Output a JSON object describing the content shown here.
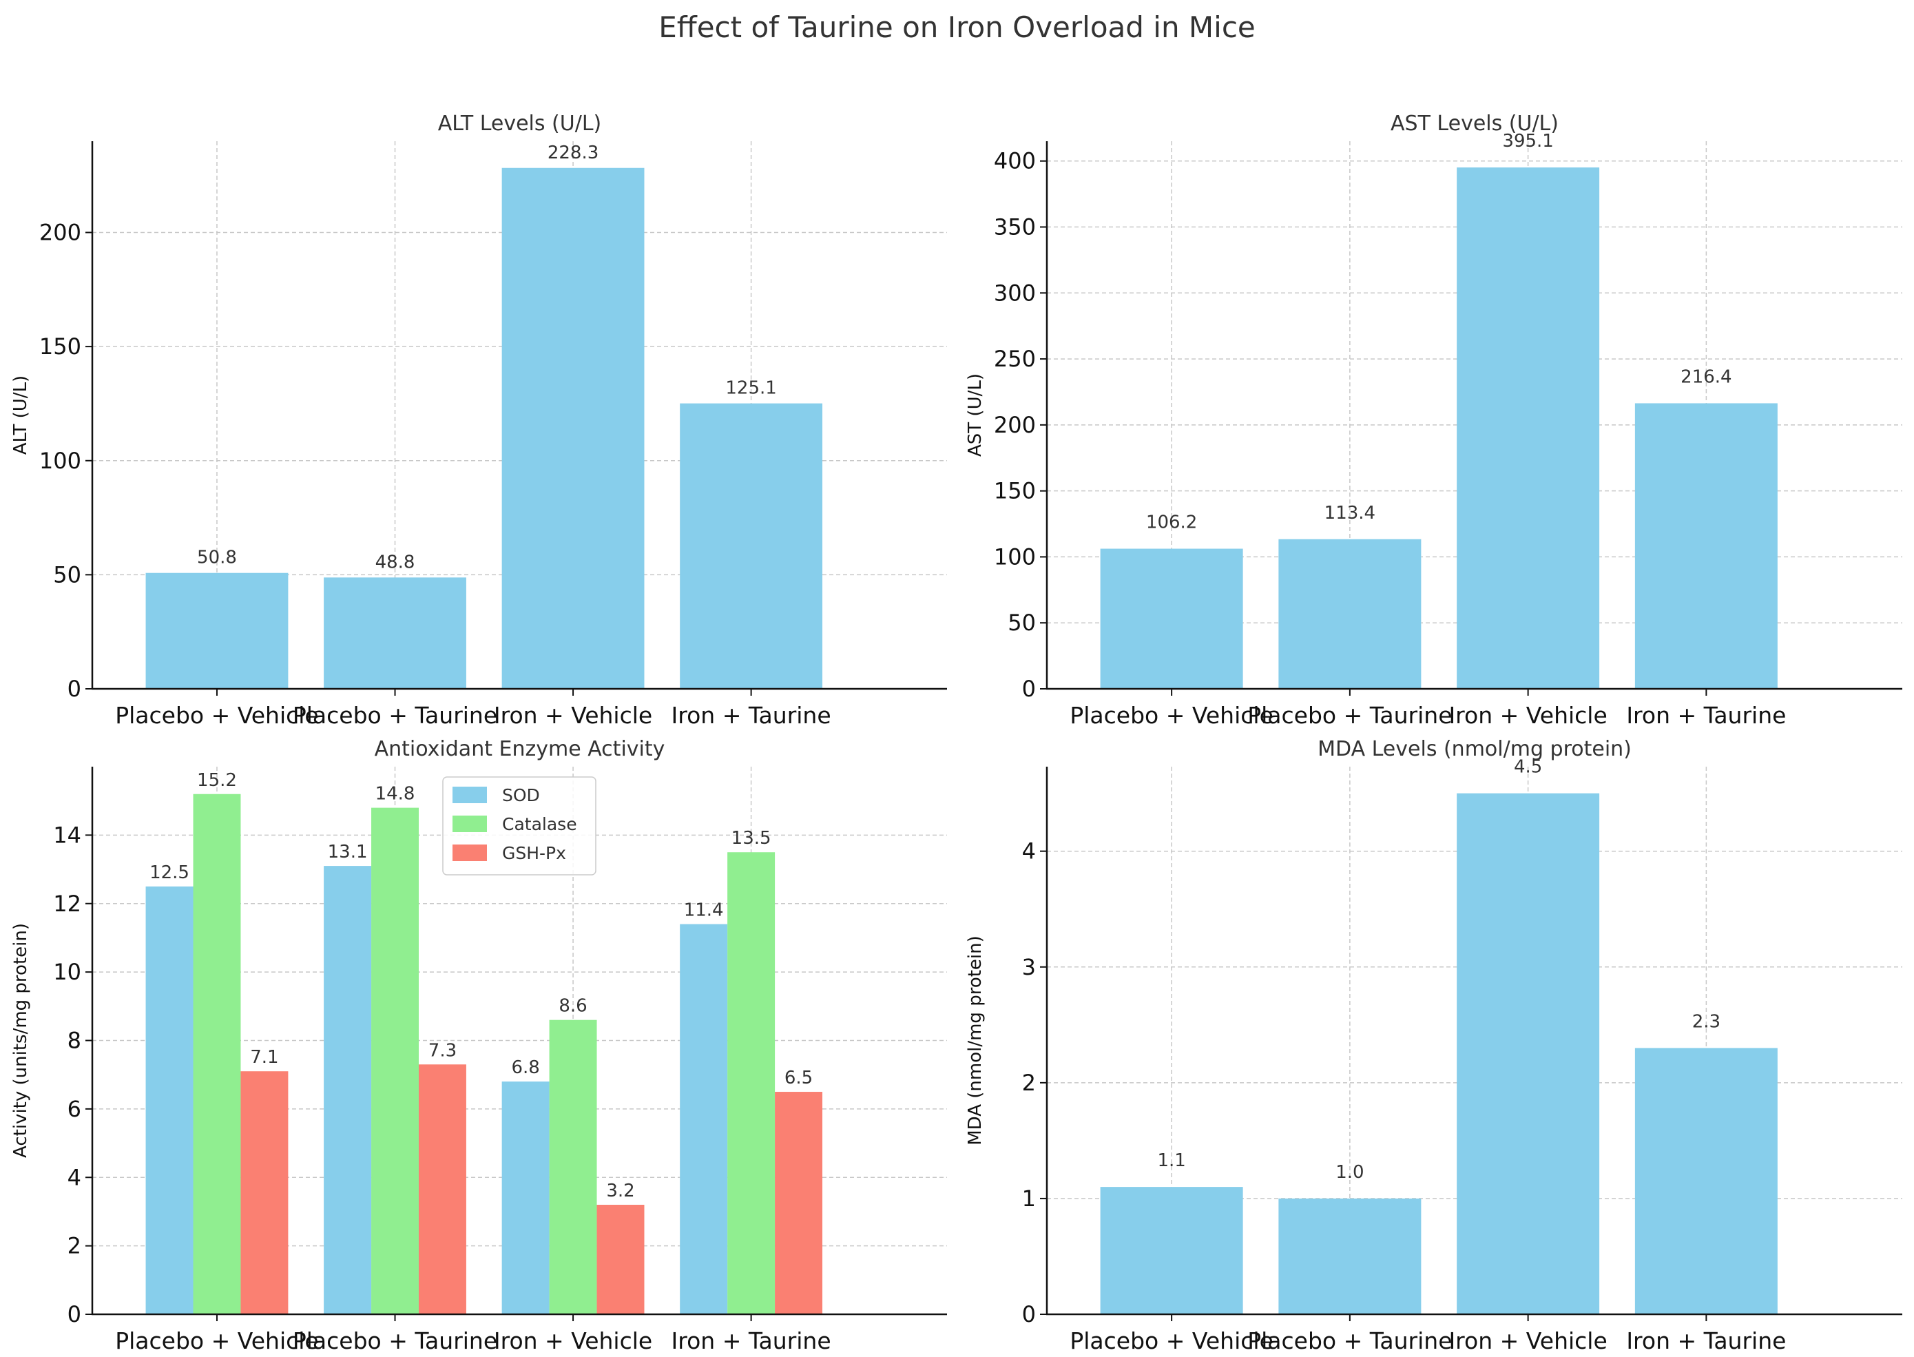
{
  "title": "Effect of Taurine on Iron Overload in Mice",
  "colors": {
    "bar": "#87CEEB",
    "sod": "#87CEEB",
    "catalase": "#90EE90",
    "gshpx": "#FA8072",
    "grid": "#c8c8c8",
    "axis": "#111111"
  },
  "chart_data": [
    {
      "type": "bar",
      "title": "ALT Levels (U/L)",
      "ylabel": "ALT (U/L)",
      "xlabel": "",
      "categories": [
        "Placebo + Vehicle",
        "Placebo + Taurine",
        "Iron + Vehicle",
        "Iron + Taurine"
      ],
      "values": [
        50.8,
        48.8,
        228.3,
        125.1
      ],
      "value_labels": [
        "50.8",
        "48.8",
        "228.3",
        "125.1"
      ],
      "ylim": [
        0,
        240
      ],
      "yticks": [
        0,
        50,
        100,
        150,
        200
      ],
      "ytick_labels": [
        "0",
        "50",
        "100",
        "150",
        "200"
      ],
      "grid": true
    },
    {
      "type": "bar",
      "title": "AST Levels (U/L)",
      "ylabel": "AST (U/L)",
      "xlabel": "",
      "categories": [
        "Placebo + Vehicle",
        "Placebo + Taurine",
        "Iron + Vehicle",
        "Iron + Taurine"
      ],
      "values": [
        106.2,
        113.4,
        395.1,
        216.4
      ],
      "value_labels": [
        "106.2",
        "113.4",
        "395.1",
        "216.4"
      ],
      "ylim": [
        0,
        415
      ],
      "yticks": [
        0,
        50,
        100,
        150,
        200,
        250,
        300,
        350,
        400
      ],
      "ytick_labels": [
        "0",
        "50",
        "100",
        "150",
        "200",
        "250",
        "300",
        "350",
        "400"
      ],
      "grid": true
    },
    {
      "type": "bar",
      "title": "Antioxidant Enzyme Activity",
      "ylabel": "Activity (units/mg protein)",
      "xlabel": "",
      "categories": [
        "Placebo + Vehicle",
        "Placebo + Taurine",
        "Iron + Vehicle",
        "Iron + Taurine"
      ],
      "series": [
        {
          "name": "SOD",
          "values": [
            12.5,
            13.1,
            6.8,
            11.4
          ],
          "value_labels": [
            "12.5",
            "13.1",
            "6.8",
            "11.4"
          ]
        },
        {
          "name": "Catalase",
          "values": [
            15.2,
            14.8,
            8.6,
            13.5
          ],
          "value_labels": [
            "15.2",
            "14.8",
            "8.6",
            "13.5"
          ]
        },
        {
          "name": "GSH-Px",
          "values": [
            7.1,
            7.3,
            3.2,
            6.5
          ],
          "value_labels": [
            "7.1",
            "7.3",
            "3.2",
            "6.5"
          ]
        }
      ],
      "ylim": [
        0,
        16
      ],
      "yticks": [
        0,
        2,
        4,
        6,
        8,
        10,
        12,
        14
      ],
      "ytick_labels": [
        "0",
        "2",
        "4",
        "6",
        "8",
        "10",
        "12",
        "14"
      ],
      "legend": "upper center",
      "grid": true
    },
    {
      "type": "bar",
      "title": "MDA Levels (nmol/mg protein)",
      "ylabel": "MDA (nmol/mg protein)",
      "xlabel": "",
      "categories": [
        "Placebo + Vehicle",
        "Placebo + Taurine",
        "Iron + Vehicle",
        "Iron + Taurine"
      ],
      "values": [
        1.1,
        1.0,
        4.5,
        2.3
      ],
      "value_labels": [
        "1.1",
        "1.0",
        "4.5",
        "2.3"
      ],
      "ylim": [
        0,
        4.73
      ],
      "yticks": [
        0,
        1,
        2,
        3,
        4
      ],
      "ytick_labels": [
        "0",
        "1",
        "2",
        "3",
        "4"
      ],
      "grid": true
    }
  ]
}
